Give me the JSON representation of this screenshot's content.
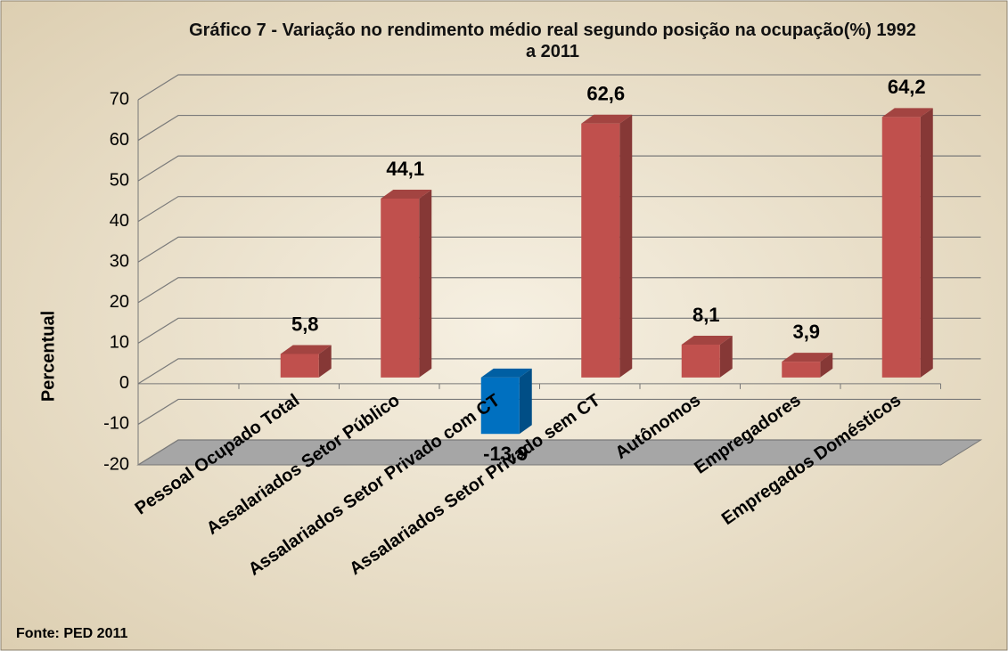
{
  "chart_data": {
    "type": "bar3d",
    "title": "Gráfico 7 - Variação no rendimento médio real segundo posição na ocupação(%) 1992 a 2011",
    "y_label": "Percentual",
    "source": "Fonte: PED 2011",
    "categories": [
      "Pessoal Ocupado Total",
      "Assalariados  Setor Público",
      "Assalariados Setor Privado com CT",
      "Assalariados Setor Privado sem CT",
      "Autônomos",
      "Empregadores",
      "Empregados Domésticos"
    ],
    "values": [
      5.8,
      44.1,
      -13.9,
      62.6,
      8.1,
      3.9,
      64.2
    ],
    "value_labels": [
      "5,8",
      "44,1",
      "-13,9",
      "62,6",
      "8,1",
      "3,9",
      "64,2"
    ],
    "colors": [
      "#c0504d",
      "#c0504d",
      "#0070c0",
      "#c0504d",
      "#c0504d",
      "#c0504d",
      "#c0504d"
    ],
    "ylim": [
      -20,
      70
    ],
    "yticks": [
      -20,
      -10,
      0,
      10,
      20,
      30,
      40,
      50,
      60,
      70
    ],
    "grid": true
  }
}
